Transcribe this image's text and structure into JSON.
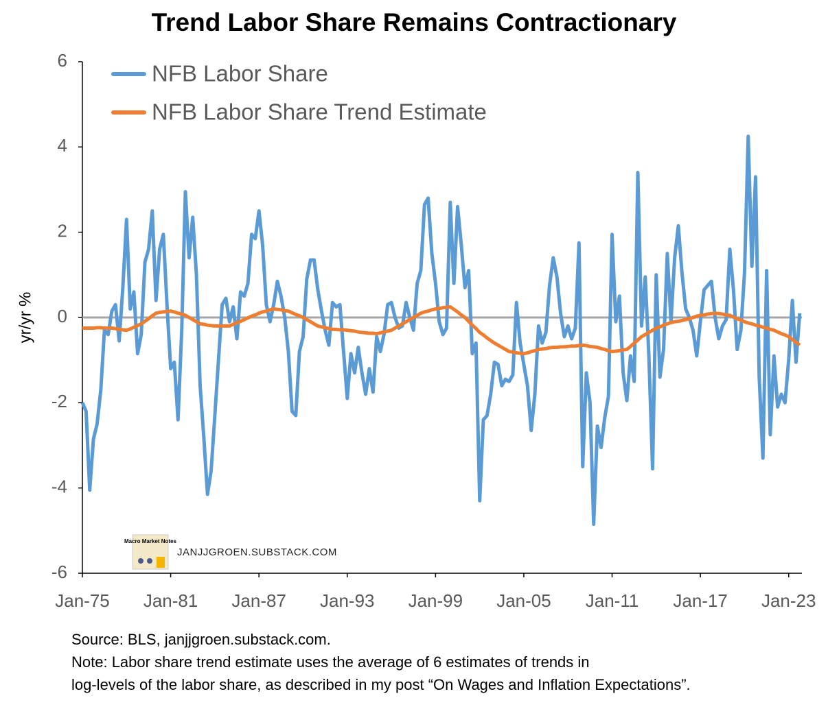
{
  "chart_data": {
    "type": "line",
    "title": "Trend Labor Share Remains Contractionary",
    "ylabel": "yr/yr %",
    "watermark": "JANJJGROEN.SUBSTACK.COM",
    "logo_text": "Macro Market Notes",
    "notes": [
      "Source: BLS, janjjgroen.substack.com.",
      "Note: Labor share trend estimate uses the average of 6 estimates of trends in",
      "log-levels of the labor share, as described in my post  “On Wages and Inflation Expectations”."
    ],
    "xlim": [
      1975,
      2023.9
    ],
    "xticks": [
      {
        "value": 1975,
        "label": "Jan-75"
      },
      {
        "value": 1981,
        "label": "Jan-81"
      },
      {
        "value": 1987,
        "label": "Jan-87"
      },
      {
        "value": 1993,
        "label": "Jan-93"
      },
      {
        "value": 1999,
        "label": "Jan-99"
      },
      {
        "value": 2005,
        "label": "Jan-05"
      },
      {
        "value": 2011,
        "label": "Jan-11"
      },
      {
        "value": 2017,
        "label": "Jan-17"
      },
      {
        "value": 2023,
        "label": "Jan-23"
      }
    ],
    "ylim": [
      -6,
      6
    ],
    "yticks": [
      -6,
      -4,
      -2,
      0,
      2,
      4,
      6
    ],
    "hline": 0,
    "legend": "top-left",
    "x": [
      1975,
      1975.25,
      1975.5,
      1975.75,
      1976,
      1976.25,
      1976.5,
      1976.75,
      1977,
      1977.25,
      1977.5,
      1977.75,
      1978,
      1978.25,
      1978.5,
      1978.75,
      1979,
      1979.25,
      1979.5,
      1979.75,
      1980,
      1980.25,
      1980.5,
      1980.75,
      1981,
      1981.25,
      1981.5,
      1981.75,
      1982,
      1982.25,
      1982.5,
      1982.75,
      1983,
      1983.25,
      1983.5,
      1983.75,
      1984,
      1984.25,
      1984.5,
      1984.75,
      1985,
      1985.25,
      1985.5,
      1985.75,
      1986,
      1986.25,
      1986.5,
      1986.75,
      1987,
      1987.25,
      1987.5,
      1987.75,
      1988,
      1988.25,
      1988.5,
      1988.75,
      1989,
      1989.25,
      1989.5,
      1989.75,
      1990,
      1990.25,
      1990.5,
      1990.75,
      1991,
      1991.25,
      1991.5,
      1991.75,
      1992,
      1992.25,
      1992.5,
      1992.75,
      1993,
      1993.25,
      1993.5,
      1993.75,
      1994,
      1994.25,
      1994.5,
      1994.75,
      1995,
      1995.25,
      1995.5,
      1995.75,
      1996,
      1996.25,
      1996.5,
      1996.75,
      1997,
      1997.25,
      1997.5,
      1997.75,
      1998,
      1998.25,
      1998.5,
      1998.75,
      1999,
      1999.25,
      1999.5,
      1999.75,
      2000,
      2000.25,
      2000.5,
      2000.75,
      2001,
      2001.25,
      2001.5,
      2001.75,
      2002,
      2002.25,
      2002.5,
      2002.75,
      2003,
      2003.25,
      2003.5,
      2003.75,
      2004,
      2004.25,
      2004.5,
      2004.75,
      2005,
      2005.25,
      2005.5,
      2005.75,
      2006,
      2006.25,
      2006.5,
      2006.75,
      2007,
      2007.25,
      2007.5,
      2007.75,
      2008,
      2008.25,
      2008.5,
      2008.75,
      2009,
      2009.25,
      2009.5,
      2009.75,
      2010,
      2010.25,
      2010.5,
      2010.75,
      2011,
      2011.25,
      2011.5,
      2011.75,
      2012,
      2012.25,
      2012.5,
      2012.75,
      2013,
      2013.25,
      2013.5,
      2013.75,
      2014,
      2014.25,
      2014.5,
      2014.75,
      2015,
      2015.25,
      2015.5,
      2015.75,
      2016,
      2016.25,
      2016.5,
      2016.75,
      2017,
      2017.25,
      2017.5,
      2017.75,
      2018,
      2018.25,
      2018.5,
      2018.75,
      2019,
      2019.25,
      2019.5,
      2019.75,
      2020,
      2020.25,
      2020.5,
      2020.75,
      2021,
      2021.25,
      2021.5,
      2021.75,
      2022,
      2022.25,
      2022.5,
      2022.75,
      2023,
      2023.25,
      2023.5,
      2023.75
    ],
    "series": [
      {
        "name": "NFB Labor Share",
        "color": "#5b9bd5",
        "values": [
          -2.0,
          -2.2,
          -4.05,
          -2.85,
          -2.5,
          -1.7,
          -0.3,
          -0.4,
          0.15,
          0.3,
          -0.55,
          0.7,
          2.3,
          0.2,
          0.6,
          -0.85,
          -0.4,
          1.3,
          1.6,
          2.5,
          0.4,
          1.6,
          1.95,
          0.3,
          -1.2,
          -1.05,
          -2.4,
          -0.3,
          2.95,
          1.4,
          2.35,
          1.0,
          -1.6,
          -2.8,
          -4.15,
          -3.6,
          -2.3,
          -1.0,
          0.3,
          0.45,
          -0.1,
          0.25,
          -0.5,
          0.6,
          0.5,
          0.8,
          1.95,
          1.85,
          2.5,
          1.7,
          0.3,
          -0.1,
          0.3,
          0.85,
          0.5,
          0.0,
          -0.8,
          -2.2,
          -2.3,
          -0.8,
          -0.45,
          0.9,
          1.35,
          1.35,
          0.65,
          0.15,
          -0.3,
          -0.65,
          0.35,
          0.25,
          0.3,
          -0.8,
          -1.9,
          -0.85,
          -1.3,
          -0.7,
          -1.3,
          -1.8,
          -1.2,
          -1.75,
          -0.45,
          -0.8,
          -0.4,
          0.3,
          0.35,
          0.0,
          -0.25,
          -0.2,
          0.35,
          0.0,
          -0.3,
          0.8,
          1.1,
          2.65,
          2.8,
          1.5,
          0.8,
          -0.1,
          -0.4,
          -0.25,
          2.7,
          0.8,
          2.6,
          1.7,
          0.7,
          1.1,
          -0.85,
          -0.6,
          -4.3,
          -2.4,
          -2.3,
          -1.8,
          -1.05,
          -1.1,
          -1.6,
          -1.45,
          -1.5,
          -1.35,
          0.35,
          -0.6,
          -1.1,
          -1.6,
          -2.65,
          -1.8,
          -0.2,
          -0.6,
          -0.35,
          0.75,
          1.4,
          0.95,
          0.1,
          -0.45,
          -0.2,
          -0.5,
          -0.25,
          1.75,
          -3.5,
          -1.3,
          -2.0,
          -4.85,
          -2.55,
          -3.05,
          -2.35,
          -1.85,
          1.95,
          -0.1,
          0.5,
          -1.3,
          -1.95,
          -0.9,
          -1.5,
          3.4,
          -0.2,
          0.95,
          -0.9,
          -3.55,
          1.0,
          -1.4,
          -0.75,
          1.5,
          -0.1,
          1.4,
          2.15,
          1.05,
          0.2,
          0.0,
          -0.3,
          -0.9,
          -0.1,
          0.65,
          0.75,
          0.85,
          0.0,
          -0.5,
          -0.2,
          -0.05,
          1.6,
          0.65,
          -0.75,
          -0.3,
          1.05,
          4.25,
          1.2,
          3.3,
          -1.4,
          -3.3,
          1.1,
          -2.75,
          -0.9,
          -2.1,
          -1.8,
          -2.0,
          -1.0,
          0.4,
          -1.05,
          0.1
        ]
      },
      {
        "name": "NFB Labor Share Trend Estimate",
        "color": "#ed7d31",
        "values": [
          -0.25,
          -0.25,
          -0.25,
          -0.25,
          -0.24,
          -0.24,
          -0.25,
          -0.25,
          -0.25,
          -0.26,
          -0.28,
          -0.29,
          -0.3,
          -0.27,
          -0.23,
          -0.19,
          -0.15,
          -0.09,
          -0.03,
          0.04,
          0.1,
          0.12,
          0.13,
          0.14,
          0.15,
          0.13,
          0.1,
          0.08,
          0.05,
          0.0,
          -0.05,
          -0.1,
          -0.15,
          -0.16,
          -0.18,
          -0.19,
          -0.2,
          -0.2,
          -0.2,
          -0.2,
          -0.2,
          -0.16,
          -0.12,
          -0.09,
          -0.05,
          -0.01,
          0.03,
          0.06,
          0.1,
          0.13,
          0.15,
          0.18,
          0.2,
          0.19,
          0.18,
          0.16,
          0.15,
          0.11,
          0.07,
          0.04,
          0.0,
          -0.05,
          -0.1,
          -0.15,
          -0.2,
          -0.22,
          -0.24,
          -0.26,
          -0.28,
          -0.28,
          -0.29,
          -0.29,
          -0.3,
          -0.31,
          -0.32,
          -0.34,
          -0.35,
          -0.36,
          -0.37,
          -0.37,
          -0.38,
          -0.36,
          -0.34,
          -0.32,
          -0.3,
          -0.25,
          -0.2,
          -0.15,
          -0.1,
          -0.05,
          0.0,
          0.05,
          0.1,
          0.13,
          0.15,
          0.18,
          0.2,
          0.21,
          0.23,
          0.24,
          0.25,
          0.19,
          0.13,
          0.06,
          0.0,
          -0.09,
          -0.18,
          -0.26,
          -0.35,
          -0.41,
          -0.48,
          -0.54,
          -0.6,
          -0.65,
          -0.7,
          -0.75,
          -0.8,
          -0.81,
          -0.83,
          -0.84,
          -0.85,
          -0.83,
          -0.8,
          -0.78,
          -0.75,
          -0.74,
          -0.73,
          -0.71,
          -0.7,
          -0.7,
          -0.69,
          -0.69,
          -0.68,
          -0.67,
          -0.67,
          -0.66,
          -0.65,
          -0.66,
          -0.68,
          -0.69,
          -0.7,
          -0.73,
          -0.75,
          -0.78,
          -0.8,
          -0.79,
          -0.78,
          -0.76,
          -0.75,
          -0.68,
          -0.6,
          -0.53,
          -0.45,
          -0.4,
          -0.35,
          -0.3,
          -0.25,
          -0.22,
          -0.18,
          -0.15,
          -0.12,
          -0.1,
          -0.09,
          -0.07,
          -0.05,
          -0.03,
          0.0,
          0.03,
          0.05,
          0.06,
          0.08,
          0.09,
          0.1,
          0.09,
          0.08,
          0.06,
          0.05,
          0.01,
          -0.03,
          -0.06,
          -0.1,
          -0.13,
          -0.15,
          -0.18,
          -0.2,
          -0.23,
          -0.25,
          -0.28,
          -0.3,
          -0.34,
          -0.38,
          -0.41,
          -0.45,
          -0.52,
          -0.58,
          -0.65
        ]
      }
    ]
  }
}
